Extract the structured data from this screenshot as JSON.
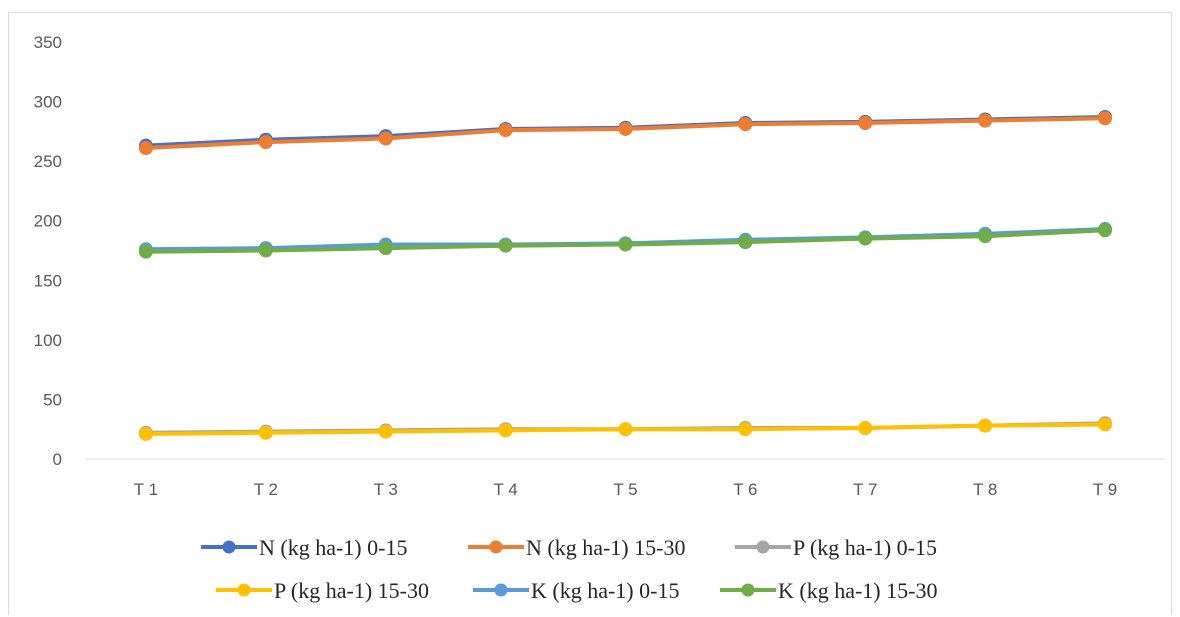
{
  "chart_data": {
    "type": "line",
    "title": "",
    "xlabel": "",
    "ylabel": "",
    "categories": [
      "T 1",
      "T 2",
      "T 3",
      "T 4",
      "T 5",
      "T 6",
      "T 7",
      "T 8",
      "T 9"
    ],
    "ylim": [
      0,
      350
    ],
    "yticks": [
      0,
      50,
      100,
      150,
      200,
      250,
      300,
      350
    ],
    "grid": false,
    "legend_position": "bottom",
    "series": [
      {
        "name": "N (kg ha-1) 0-15",
        "color": "#4472C4",
        "values": [
          263,
          268,
          271,
          277,
          278,
          282,
          283,
          285,
          287
        ]
      },
      {
        "name": "N (kg ha-1) 15-30",
        "color": "#ED7D31",
        "values": [
          261,
          266,
          269,
          276,
          277,
          281,
          282,
          284,
          286
        ]
      },
      {
        "name": "P (kg ha-1) 0-15",
        "color": "#A5A5A5",
        "values": [
          22,
          23,
          24,
          25,
          25,
          26,
          26,
          28,
          30
        ]
      },
      {
        "name": "P (kg ha-1) 15-30",
        "color": "#FFC000",
        "values": [
          21,
          22,
          23,
          24,
          25,
          25,
          26,
          28,
          29
        ]
      },
      {
        "name": "K (kg ha-1) 0-15",
        "color": "#5B9BD5",
        "values": [
          176,
          177,
          180,
          180,
          181,
          184,
          186,
          189,
          193
        ]
      },
      {
        "name": "K (kg ha-1) 15-30",
        "color": "#70AD47",
        "values": [
          174,
          175,
          177,
          179,
          180,
          182,
          185,
          187,
          192
        ]
      }
    ]
  }
}
